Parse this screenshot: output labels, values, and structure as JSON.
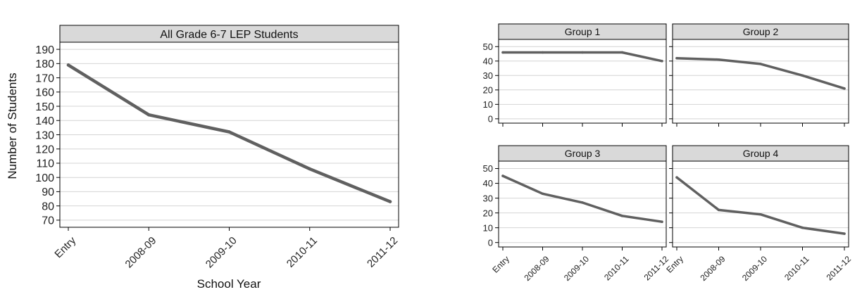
{
  "figure": {
    "ylabel": "Number of Students",
    "xlabel": "School Year",
    "line_color": "#606060",
    "strip_color": "#d9d9d9",
    "grid_color": "#d4d4d4"
  },
  "chart_data": [
    {
      "type": "line",
      "title": "All Grade 6-7 LEP Students",
      "categories": [
        "Entry",
        "2008-09",
        "2009-10",
        "2010-11",
        "2011-12"
      ],
      "series": [
        {
          "values": [
            179,
            144,
            132,
            106,
            83
          ]
        }
      ],
      "ylim": [
        65,
        195
      ],
      "yticks": [
        70,
        80,
        90,
        100,
        110,
        120,
        130,
        140,
        150,
        160,
        170,
        180,
        190
      ],
      "xlabel": "School Year",
      "ylabel": "Number of Students",
      "grid": true
    },
    {
      "type": "line",
      "title": "Group 1",
      "categories": [
        "Entry",
        "2008-09",
        "2009-10",
        "2010-11",
        "2011-12"
      ],
      "series": [
        {
          "values": [
            46,
            46,
            46,
            46,
            40
          ]
        }
      ],
      "ylim": [
        -3,
        55
      ],
      "yticks": [
        0,
        10,
        20,
        30,
        40,
        50
      ],
      "grid": true
    },
    {
      "type": "line",
      "title": "Group 2",
      "categories": [
        "Entry",
        "2008-09",
        "2009-10",
        "2010-11",
        "2011-12"
      ],
      "series": [
        {
          "values": [
            42,
            41,
            38,
            30,
            21
          ]
        }
      ],
      "ylim": [
        -3,
        55
      ],
      "yticks": [
        0,
        10,
        20,
        30,
        40,
        50
      ],
      "grid": true
    },
    {
      "type": "line",
      "title": "Group 3",
      "categories": [
        "Entry",
        "2008-09",
        "2009-10",
        "2010-11",
        "2011-12"
      ],
      "series": [
        {
          "values": [
            45,
            33,
            27,
            18,
            14
          ]
        }
      ],
      "ylim": [
        -3,
        55
      ],
      "yticks": [
        0,
        10,
        20,
        30,
        40,
        50
      ],
      "grid": true
    },
    {
      "type": "line",
      "title": "Group 4",
      "categories": [
        "Entry",
        "2008-09",
        "2009-10",
        "2010-11",
        "2011-12"
      ],
      "series": [
        {
          "values": [
            44,
            22,
            19,
            10,
            6
          ]
        }
      ],
      "ylim": [
        -3,
        55
      ],
      "yticks": [
        0,
        10,
        20,
        30,
        40,
        50
      ],
      "grid": true
    }
  ]
}
